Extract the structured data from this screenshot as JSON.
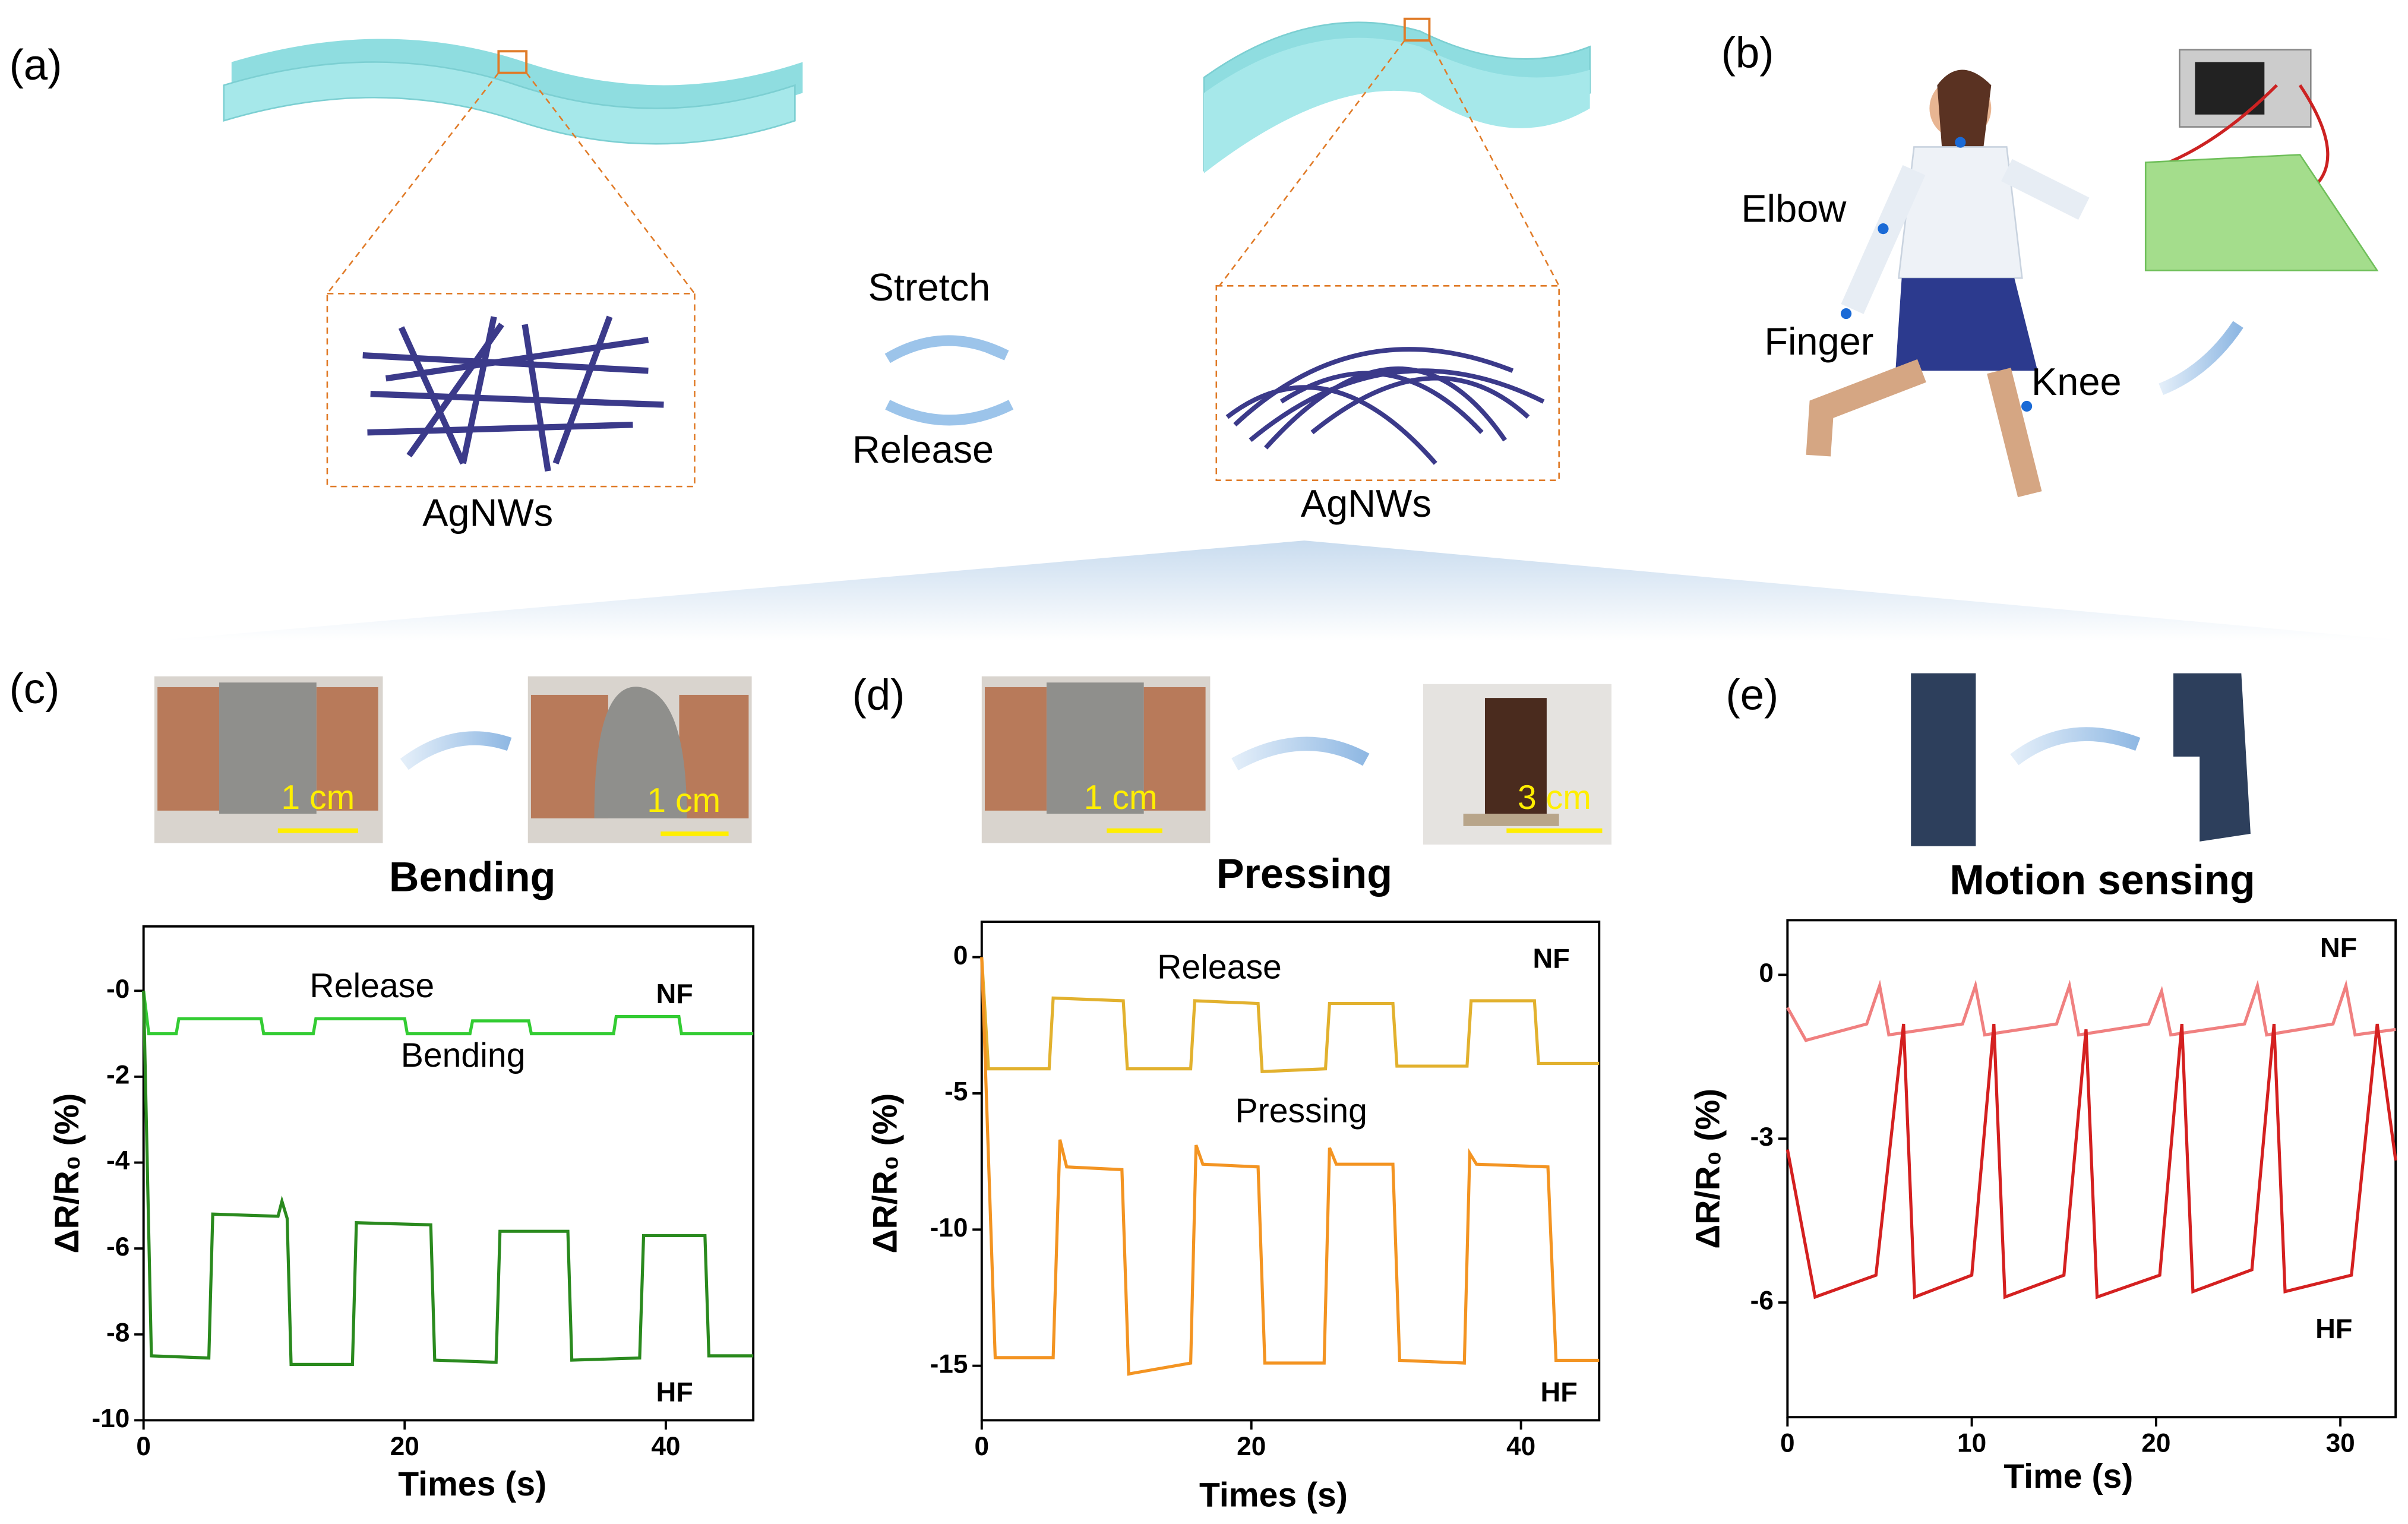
{
  "figure": {
    "panel_labels": [
      "(a)",
      "(b)",
      "(c)",
      "(d)",
      "(e)"
    ],
    "stretch": "Stretch",
    "release": "Release",
    "agnws": [
      "AgNWs",
      "AgNWs"
    ],
    "body_points": [
      "Elbow",
      "Finger",
      "Knee"
    ],
    "scale_bars": [
      "1 cm",
      "1 cm",
      "1 cm",
      "3 cm"
    ]
  },
  "chart_data": [
    {
      "type": "line",
      "title": "Bending",
      "x_label": "Times (s)",
      "y_label": "ΔR/R₀ (%)",
      "xlim": [
        0,
        46.7
      ],
      "xticks": [
        0,
        20,
        40
      ],
      "ylim": [
        -10,
        1.5
      ],
      "yticks": [
        {
          "value": 0,
          "label": "-0"
        },
        -2,
        -4,
        -6,
        -8,
        -10
      ],
      "annotations": [
        "Release",
        "Bending",
        "NF",
        "HF"
      ],
      "series": [
        {
          "name": "NF",
          "color": "#33cc33",
          "x": [
            0,
            0.4,
            2.5,
            2.7,
            9,
            9.2,
            13,
            13.2,
            20,
            20.2,
            25,
            25.2,
            29.5,
            29.7,
            36,
            36.2,
            41,
            41.2,
            46.7
          ],
          "values": [
            0,
            -1.0,
            -1.0,
            -0.65,
            -0.65,
            -1.0,
            -1.0,
            -0.65,
            -0.65,
            -1.0,
            -1.0,
            -0.7,
            -0.7,
            -1.0,
            -1.0,
            -0.6,
            -0.6,
            -1.0,
            -1.0
          ]
        },
        {
          "name": "HF",
          "color": "#2a8a1e",
          "x": [
            0,
            0.6,
            5,
            5.3,
            10.3,
            10.6,
            11,
            11.3,
            16,
            16.3,
            22,
            22.3,
            27,
            27.3,
            32.5,
            32.8,
            38,
            38.3,
            43,
            43.3,
            46.7
          ],
          "values": [
            0,
            -8.5,
            -8.55,
            -5.2,
            -5.25,
            -4.9,
            -5.3,
            -8.7,
            -8.7,
            -5.4,
            -5.45,
            -8.6,
            -8.65,
            -5.6,
            -5.6,
            -8.6,
            -8.55,
            -5.7,
            -5.7,
            -8.5,
            -8.5
          ]
        }
      ]
    },
    {
      "type": "line",
      "title": "Pressing",
      "x_label": "Times (s)",
      "y_label": "ΔR/R₀ (%)",
      "xlim": [
        0,
        45.8
      ],
      "xticks": [
        0,
        20,
        40
      ],
      "ylim": [
        -17,
        1.3
      ],
      "yticks": [
        0,
        -5,
        -10,
        -15
      ],
      "annotations": [
        "Release",
        "Pressing",
        "NF",
        "HF"
      ],
      "series": [
        {
          "name": "NF",
          "color": "#e2b12e",
          "x": [
            0,
            0.5,
            5,
            5.3,
            10.5,
            10.8,
            15.5,
            15.8,
            20.5,
            20.8,
            25.5,
            25.8,
            30.5,
            30.8,
            36,
            36.3,
            41,
            41.3,
            45.8
          ],
          "values": [
            0,
            -4.1,
            -4.1,
            -1.5,
            -1.6,
            -4.1,
            -4.1,
            -1.6,
            -1.7,
            -4.2,
            -4.1,
            -1.7,
            -1.7,
            -4.0,
            -4.0,
            -1.6,
            -1.6,
            -3.9,
            -3.9
          ]
        },
        {
          "name": "HF",
          "color": "#f39422",
          "x": [
            0,
            1,
            5.3,
            5.8,
            6.3,
            10.4,
            10.9,
            15.5,
            15.9,
            16.4,
            20.5,
            21,
            25.4,
            25.8,
            26.3,
            30.5,
            31,
            35.8,
            36.2,
            36.7,
            42,
            42.6,
            45.8
          ],
          "values": [
            0,
            -14.7,
            -14.7,
            -6.7,
            -7.7,
            -7.8,
            -15.3,
            -14.9,
            -6.9,
            -7.6,
            -7.7,
            -14.9,
            -14.9,
            -7.0,
            -7.6,
            -7.6,
            -14.8,
            -14.9,
            -7.2,
            -7.6,
            -7.7,
            -14.8,
            -14.8
          ]
        }
      ]
    },
    {
      "type": "line",
      "title": "Motion sensing",
      "x_label": "Time (s)",
      "y_label": "ΔR/R₀ (%)",
      "xlim": [
        0,
        33
      ],
      "xticks": [
        0,
        10,
        20,
        30
      ],
      "ylim": [
        -8.1,
        1.0
      ],
      "yticks": [
        0,
        -3,
        -6
      ],
      "annotations": [
        "NF",
        "HF"
      ],
      "series": [
        {
          "name": "NF",
          "color": "#f08080",
          "x": [
            0,
            1,
            4.3,
            5.0,
            5.5,
            9.5,
            10.2,
            10.7,
            14.6,
            15.3,
            15.8,
            19.6,
            20.3,
            20.8,
            24.8,
            25.5,
            26.0,
            29.6,
            30.3,
            30.8,
            33
          ],
          "values": [
            -0.6,
            -1.2,
            -0.9,
            -0.2,
            -1.1,
            -0.9,
            -0.2,
            -1.1,
            -0.9,
            -0.2,
            -1.1,
            -0.9,
            -0.3,
            -1.1,
            -0.9,
            -0.2,
            -1.1,
            -0.9,
            -0.2,
            -1.1,
            -1.0
          ]
        },
        {
          "name": "HF",
          "color": "#d42020",
          "x": [
            0,
            1.5,
            4.8,
            6.3,
            6.9,
            10.0,
            11.2,
            11.8,
            15.0,
            16.2,
            16.8,
            20.2,
            21.4,
            22.0,
            25.2,
            26.4,
            27.0,
            30.6,
            32.0,
            33.0
          ],
          "values": [
            -3.2,
            -5.9,
            -5.5,
            -0.9,
            -5.9,
            -5.5,
            -0.9,
            -5.9,
            -5.5,
            -1.0,
            -5.9,
            -5.5,
            -0.9,
            -5.8,
            -5.4,
            -0.9,
            -5.8,
            -5.5,
            -0.9,
            -3.4
          ]
        }
      ]
    }
  ]
}
